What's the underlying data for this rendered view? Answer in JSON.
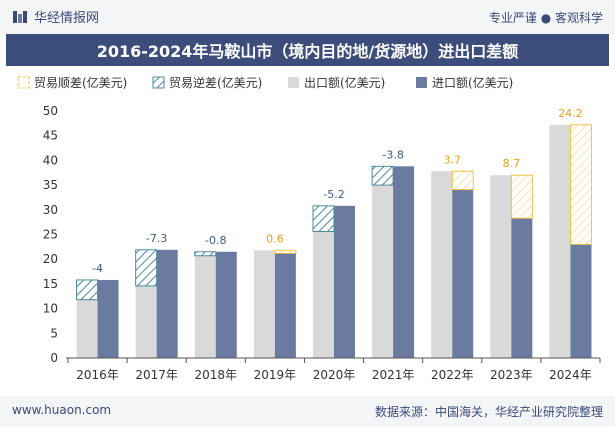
{
  "header": {
    "brand_name": "华经情报网",
    "tagline": "专业严谨 ● 客观科学"
  },
  "title": "2016-2024年马鞍山市（境内目的地/货源地）进出口差额",
  "footer": {
    "website": "www.huaon.com",
    "source": "数据来源：中国海关，华经产业研究院整理"
  },
  "colors": {
    "title_bg": "#3c4d7c",
    "export": "#d9d9d9",
    "import": "#6a7aa0",
    "surplus": "#f5c242",
    "deficit": "#4d8a9a"
  },
  "chart_data": {
    "type": "bar",
    "categories": [
      "2016年",
      "2017年",
      "2018年",
      "2019年",
      "2020年",
      "2021年",
      "2022年",
      "2023年",
      "2024年"
    ],
    "series": [
      {
        "name": "出口额(亿美元)",
        "values": [
          11.8,
          14.6,
          20.7,
          21.8,
          25.6,
          35.0,
          37.8,
          37.0,
          47.2
        ]
      },
      {
        "name": "进口额(亿美元)",
        "values": [
          15.8,
          21.9,
          21.5,
          21.2,
          30.8,
          38.8,
          34.1,
          28.3,
          23.0
        ]
      }
    ],
    "balance": [
      -4,
      -7.3,
      -0.8,
      0.6,
      -5.2,
      -3.8,
      3.7,
      8.7,
      24.2
    ],
    "balance_labels": [
      "-4",
      "-7.3",
      "-0.8",
      "0.6",
      "-5.2",
      "-3.8",
      "3.7",
      "8.7",
      "24.2"
    ],
    "legend": [
      "贸易顺差(亿美元)",
      "贸易逆差(亿美元)",
      "出口额(亿美元)",
      "进口额(亿美元)"
    ],
    "legend_position": "top",
    "y_ticks": [
      "0",
      "5",
      "10",
      "15",
      "20",
      "25",
      "30",
      "35",
      "40",
      "45",
      "50"
    ],
    "ylim": [
      0,
      50
    ],
    "grid": false
  }
}
